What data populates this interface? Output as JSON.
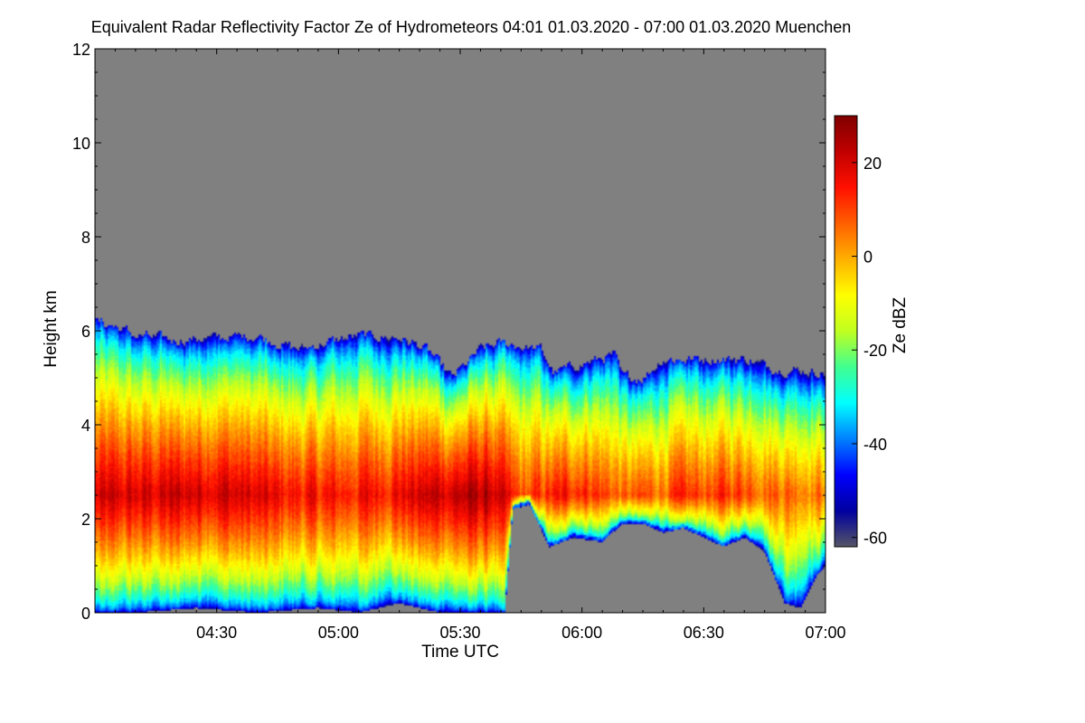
{
  "chart_data": {
    "type": "heatmap",
    "title": "Equivalent Radar Reflectivity Factor Ze of Hydrometeors   04:01 01.03.2020 - 07:00 01.03.2020 Muenchen",
    "xlabel": "Time UTC",
    "ylabel": "Height km",
    "x_unit": "minutes since 04:00 UTC",
    "xlim": [
      0,
      180
    ],
    "ylim": [
      0,
      12
    ],
    "x_ticks": [
      {
        "value": 30,
        "label": "04:30"
      },
      {
        "value": 60,
        "label": "05:00"
      },
      {
        "value": 90,
        "label": "05:30"
      },
      {
        "value": 120,
        "label": "06:00"
      },
      {
        "value": 150,
        "label": "06:30"
      },
      {
        "value": 180,
        "label": "07:00"
      }
    ],
    "y_ticks": [
      {
        "value": 0,
        "label": "0"
      },
      {
        "value": 2,
        "label": "2"
      },
      {
        "value": 4,
        "label": "4"
      },
      {
        "value": 6,
        "label": "6"
      },
      {
        "value": 8,
        "label": "8"
      },
      {
        "value": 10,
        "label": "10"
      },
      {
        "value": 12,
        "label": "12"
      }
    ],
    "background_color": "#808080",
    "grid": false,
    "colorbar": {
      "label": "Ze dBZ",
      "range": [
        -62,
        30
      ],
      "ticks": [
        {
          "value": 20,
          "label": "20"
        },
        {
          "value": 0,
          "label": "0"
        },
        {
          "value": -20,
          "label": "-20"
        },
        {
          "value": -40,
          "label": "-40"
        },
        {
          "value": -60,
          "label": "-60"
        }
      ],
      "colormap": [
        "#555566",
        "#0000a0",
        "#0000ff",
        "#0080ff",
        "#00ffff",
        "#40ff90",
        "#c0ff20",
        "#ffff00",
        "#ffb000",
        "#ff6000",
        "#ff1000",
        "#c00000",
        "#800000"
      ]
    },
    "cloud_top_km": [
      {
        "t": 0,
        "h": 6.2
      },
      {
        "t": 5,
        "h": 6.1
      },
      {
        "t": 10,
        "h": 5.9
      },
      {
        "t": 20,
        "h": 5.8
      },
      {
        "t": 30,
        "h": 5.85
      },
      {
        "t": 40,
        "h": 5.9
      },
      {
        "t": 50,
        "h": 5.6
      },
      {
        "t": 55,
        "h": 5.7
      },
      {
        "t": 60,
        "h": 5.8
      },
      {
        "t": 65,
        "h": 5.9
      },
      {
        "t": 75,
        "h": 5.85
      },
      {
        "t": 82,
        "h": 5.6
      },
      {
        "t": 88,
        "h": 5.0
      },
      {
        "t": 95,
        "h": 5.6
      },
      {
        "t": 100,
        "h": 5.75
      },
      {
        "t": 110,
        "h": 5.6
      },
      {
        "t": 113,
        "h": 5.1
      },
      {
        "t": 120,
        "h": 5.3
      },
      {
        "t": 128,
        "h": 5.5
      },
      {
        "t": 130,
        "h": 5.0
      },
      {
        "t": 135,
        "h": 5.0
      },
      {
        "t": 140,
        "h": 5.4
      },
      {
        "t": 150,
        "h": 5.4
      },
      {
        "t": 160,
        "h": 5.4
      },
      {
        "t": 168,
        "h": 5.2
      },
      {
        "t": 180,
        "h": 5.1
      }
    ],
    "cloud_base_km": [
      {
        "t": 0,
        "h": 0.0
      },
      {
        "t": 10,
        "h": 0.0
      },
      {
        "t": 25,
        "h": 0.1
      },
      {
        "t": 40,
        "h": 0.0
      },
      {
        "t": 55,
        "h": 0.1
      },
      {
        "t": 65,
        "h": 0.0
      },
      {
        "t": 75,
        "h": 0.2
      },
      {
        "t": 85,
        "h": 0.0
      },
      {
        "t": 95,
        "h": 0.0
      },
      {
        "t": 101,
        "h": 0.0
      },
      {
        "t": 103,
        "h": 2.2
      },
      {
        "t": 107,
        "h": 2.3
      },
      {
        "t": 112,
        "h": 1.4
      },
      {
        "t": 118,
        "h": 1.6
      },
      {
        "t": 125,
        "h": 1.5
      },
      {
        "t": 130,
        "h": 1.9
      },
      {
        "t": 135,
        "h": 1.9
      },
      {
        "t": 140,
        "h": 1.7
      },
      {
        "t": 145,
        "h": 1.8
      },
      {
        "t": 150,
        "h": 1.6
      },
      {
        "t": 155,
        "h": 1.4
      },
      {
        "t": 160,
        "h": 1.6
      },
      {
        "t": 165,
        "h": 1.3
      },
      {
        "t": 170,
        "h": 0.2
      },
      {
        "t": 174,
        "h": 0.1
      },
      {
        "t": 178,
        "h": 0.8
      },
      {
        "t": 180,
        "h": 1.0
      }
    ],
    "core_ze_dbz": [
      {
        "t": 0,
        "ze": 18
      },
      {
        "t": 15,
        "ze": 20
      },
      {
        "t": 30,
        "ze": 22
      },
      {
        "t": 45,
        "ze": 16
      },
      {
        "t": 60,
        "ze": 14
      },
      {
        "t": 75,
        "ze": 18
      },
      {
        "t": 85,
        "ze": 22
      },
      {
        "t": 97,
        "ze": 24
      },
      {
        "t": 105,
        "ze": 8
      },
      {
        "t": 115,
        "ze": 14
      },
      {
        "t": 120,
        "ze": 16
      },
      {
        "t": 130,
        "ze": 6
      },
      {
        "t": 145,
        "ze": 10
      },
      {
        "t": 160,
        "ze": 12
      },
      {
        "t": 170,
        "ze": 8
      },
      {
        "t": 180,
        "ze": 6
      }
    ],
    "core_height_km": 2.5
  }
}
